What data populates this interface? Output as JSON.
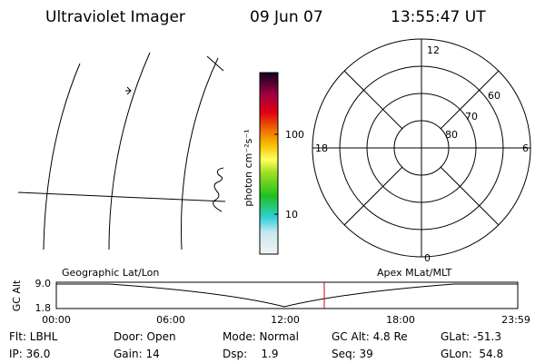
{
  "header": {
    "title": "Ultraviolet Imager",
    "date": "09 Jun 07",
    "time": "13:55:47 UT"
  },
  "colorbar": {
    "label": "photon cm⁻²s⁻¹",
    "ticks": [
      "100",
      "10"
    ]
  },
  "polar": {
    "mlt_labels": [
      "12",
      "18",
      "6",
      "0"
    ],
    "lat_labels": [
      "60",
      "70",
      "80"
    ]
  },
  "timeline": {
    "y_label": "GC Alt",
    "y_ticks": [
      "9.0",
      "1.8"
    ],
    "left_title": "Geographic Lat/Lon",
    "right_title": "Apex MLat/MLT",
    "x_ticks": [
      "00:00",
      "06:00",
      "12:00",
      "18:00",
      "23:59"
    ]
  },
  "footer": {
    "rows": [
      [
        "Flt: LBHL",
        "Door: Open",
        "Mode: Normal",
        "GC Alt: 4.8 Re",
        "GLat: -51.3"
      ],
      [
        "IP: 36.0",
        "Gain: 14",
        "Dsp:    1.9",
        "Seq: 39",
        "GLon:  54.8"
      ]
    ]
  }
}
